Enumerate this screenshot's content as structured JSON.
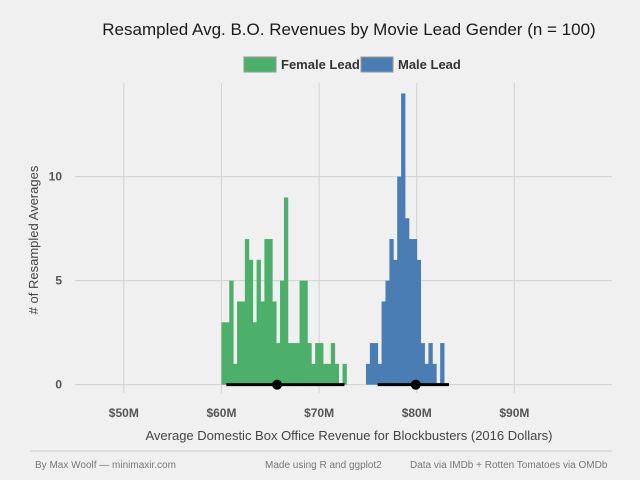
{
  "chart_data": {
    "type": "histogram",
    "title": "Resampled Avg. B.O. Revenues by Movie Lead Gender (n = 100)",
    "xlabel": "Average Domestic Box Office Revenue for Blockbusters (2016 Dollars)",
    "ylabel": "# of Resampled Averages",
    "xlim": [
      45,
      100
    ],
    "ylim": [
      -0.4,
      14.5
    ],
    "xticks": [
      {
        "value": 50,
        "label": "$50M"
      },
      {
        "value": 60,
        "label": "$60M"
      },
      {
        "value": 70,
        "label": "$70M"
      },
      {
        "value": 80,
        "label": "$80M"
      },
      {
        "value": 90,
        "label": "$90M"
      }
    ],
    "yticks": [
      {
        "value": 0,
        "label": "0"
      },
      {
        "value": 5,
        "label": "5"
      },
      {
        "value": 10,
        "label": "10"
      }
    ],
    "bin_width": 0.4,
    "legend_position": "top",
    "grid": true,
    "series": [
      {
        "name": "Female Lead",
        "color": "#4caf6a",
        "bin_start": 60.0,
        "counts": [
          3,
          3,
          5,
          1,
          4,
          4,
          7,
          6,
          3,
          6,
          4,
          7,
          7,
          4,
          2,
          5,
          9,
          2,
          2,
          2,
          5,
          5,
          2,
          1,
          2,
          2,
          1,
          1,
          2,
          1,
          0,
          1
        ],
        "ci": [
          60.5,
          72.6
        ],
        "mean": 65.7
      },
      {
        "name": "Male Lead",
        "color": "#4a7db4",
        "bin_start": 74.8,
        "counts": [
          1,
          2,
          2,
          1,
          4,
          5,
          7,
          6,
          10,
          14,
          8,
          7,
          7,
          6,
          2,
          1,
          2,
          1,
          0,
          2
        ],
        "ci": [
          76.0,
          83.3
        ],
        "mean": 79.9
      }
    ]
  },
  "footer": {
    "author": "By Max Woolf — minimaxir.com",
    "tools": "Made using R and ggplot2",
    "source": "Data via IMDb + Rotten Tomatoes via OMDb"
  }
}
